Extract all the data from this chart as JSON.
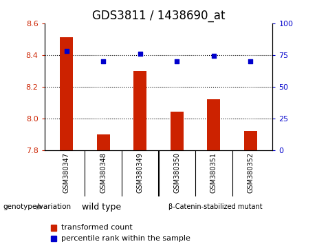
{
  "title": "GDS3811 / 1438690_at",
  "categories": [
    "GSM380347",
    "GSM380348",
    "GSM380349",
    "GSM380350",
    "GSM380351",
    "GSM380352"
  ],
  "bar_values": [
    8.51,
    7.9,
    8.3,
    8.04,
    8.12,
    7.92
  ],
  "bar_bottom": 7.8,
  "percentile_values": [
    78,
    70,
    76,
    70,
    74,
    70
  ],
  "ylim_left": [
    7.8,
    8.6
  ],
  "ylim_right": [
    0,
    100
  ],
  "yticks_left": [
    7.8,
    8.0,
    8.2,
    8.4,
    8.6
  ],
  "yticks_right": [
    0,
    25,
    50,
    75,
    100
  ],
  "bar_color": "#cc2200",
  "percentile_color": "#0000cc",
  "grid_lines": [
    8.0,
    8.2,
    8.4
  ],
  "group1_label": "wild type",
  "group2_label": "β-Catenin-stabilized mutant",
  "group1_color": "#aaffaa",
  "group2_color": "#66ee66",
  "genotype_label": "genotype/variation",
  "legend_bar_label": "transformed count",
  "legend_dot_label": "percentile rank within the sample",
  "title_fontsize": 12,
  "axis_label_color_left": "#cc2200",
  "axis_label_color_right": "#0000cc",
  "tick_bg_color": "#cccccc",
  "bar_width": 0.35
}
